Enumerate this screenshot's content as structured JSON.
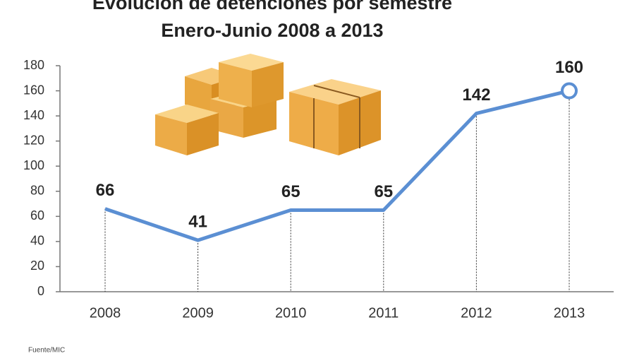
{
  "chart_data": {
    "type": "line",
    "title": "Evolución de detenciones por semestre",
    "subtitle": "Enero-Junio 2008 a 2013",
    "source": "Fuente/MIC",
    "categories": [
      "2008",
      "2009",
      "2010",
      "2011",
      "2012",
      "2013"
    ],
    "series": [
      {
        "name": "Detenciones",
        "color": "#5b8fd3",
        "values": [
          66,
          41,
          65,
          65,
          142,
          160
        ]
      }
    ],
    "ylim": [
      0,
      180
    ],
    "yticks": [
      0,
      20,
      40,
      60,
      80,
      100,
      120,
      140,
      160,
      180
    ]
  }
}
